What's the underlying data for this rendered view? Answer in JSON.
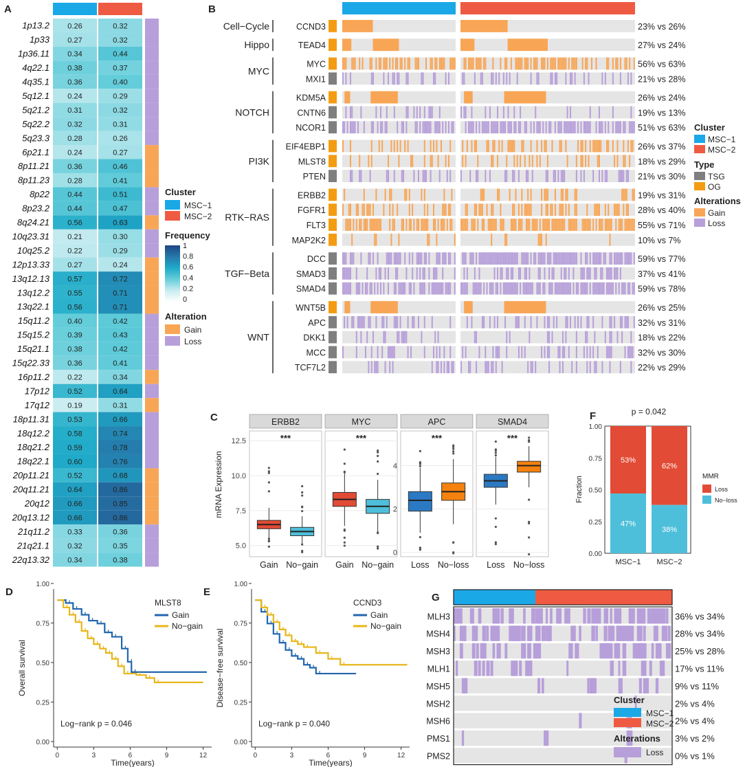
{
  "panels": {
    "A": "A",
    "B": "B",
    "C": "C",
    "D": "D",
    "E": "E",
    "F": "F",
    "G": "G"
  },
  "colors": {
    "msc1": "#1BA8E6",
    "msc2": "#EF5B42",
    "gain": "#F8A656",
    "loss": "#B79FDA",
    "tsg": "#7F7F7F",
    "og": "#F39C12",
    "bg": "#E5E5E5",
    "blue_box": "#2B79C2",
    "orange_box": "#F5820E",
    "red_box": "#E24B35",
    "lightblue_box": "#4EBFDA",
    "km_blue": "#2166AC",
    "km_yellow": "#E7B619"
  },
  "legendA": {
    "cluster_title": "Cluster",
    "msc1": "MSC−1",
    "msc2": "MSC−2",
    "freq_title": "Frequency",
    "freq_ticks": [
      "1",
      "0.8",
      "0.6",
      "0.4",
      "0.2",
      "0"
    ],
    "alt_title": "Alteration",
    "gain": "Gain",
    "loss": "Loss"
  },
  "heatmap": {
    "rows": [
      {
        "label": "1p13.2",
        "v1": "0.26",
        "v2": "0.32",
        "alt": "Loss"
      },
      {
        "label": "1p33",
        "v1": "0.27",
        "v2": "0.32",
        "alt": "Loss"
      },
      {
        "label": "1p36.11",
        "v1": "0.34",
        "v2": "0.44",
        "alt": "Loss"
      },
      {
        "label": "4q22.1",
        "v1": "0.38",
        "v2": "0.37",
        "alt": "Loss"
      },
      {
        "label": "4q35.1",
        "v1": "0.36",
        "v2": "0.40",
        "alt": "Loss"
      },
      {
        "label": "5q12.1",
        "v1": "0.24",
        "v2": "0.29",
        "alt": "Loss"
      },
      {
        "label": "5q21.2",
        "v1": "0.31",
        "v2": "0.32",
        "alt": "Loss"
      },
      {
        "label": "5q22.2",
        "v1": "0.32",
        "v2": "0.31",
        "alt": "Loss"
      },
      {
        "label": "5q23.3",
        "v1": "0.28",
        "v2": "0.26",
        "alt": "Loss"
      },
      {
        "label": "6p21.1",
        "v1": "0.24",
        "v2": "0.27",
        "alt": "Gain"
      },
      {
        "label": "8p11.21",
        "v1": "0.36",
        "v2": "0.46",
        "alt": "Gain"
      },
      {
        "label": "8p11.23",
        "v1": "0.28",
        "v2": "0.41",
        "alt": "Gain"
      },
      {
        "label": "8p22",
        "v1": "0.44",
        "v2": "0.51",
        "alt": "Loss"
      },
      {
        "label": "8p23.2",
        "v1": "0.44",
        "v2": "0.47",
        "alt": "Loss"
      },
      {
        "label": "8q24.21",
        "v1": "0.56",
        "v2": "0.63",
        "alt": "Gain"
      },
      {
        "label": "10q23.31",
        "v1": "0.21",
        "v2": "0.30",
        "alt": "Loss"
      },
      {
        "label": "10q25.2",
        "v1": "0.22",
        "v2": "0.29",
        "alt": "Loss"
      },
      {
        "label": "12p13.33",
        "v1": "0.27",
        "v2": "0.24",
        "alt": "Gain"
      },
      {
        "label": "13q12.13",
        "v1": "0.57",
        "v2": "0.72",
        "alt": "Gain"
      },
      {
        "label": "13q12.2",
        "v1": "0.55",
        "v2": "0.71",
        "alt": "Gain"
      },
      {
        "label": "13q22.1",
        "v1": "0.56",
        "v2": "0.71",
        "alt": "Gain"
      },
      {
        "label": "15q11.2",
        "v1": "0.40",
        "v2": "0.42",
        "alt": "Loss"
      },
      {
        "label": "15q15.2",
        "v1": "0.39",
        "v2": "0.43",
        "alt": "Loss"
      },
      {
        "label": "15q21.1",
        "v1": "0.38",
        "v2": "0.42",
        "alt": "Loss"
      },
      {
        "label": "15q22.33",
        "v1": "0.36",
        "v2": "0.41",
        "alt": "Loss"
      },
      {
        "label": "16p11.2",
        "v1": "0.22",
        "v2": "0.34",
        "alt": "Gain"
      },
      {
        "label": "17p12",
        "v1": "0.52",
        "v2": "0.64",
        "alt": "Loss"
      },
      {
        "label": "17q12",
        "v1": "0.19",
        "v2": "0.31",
        "alt": "Gain"
      },
      {
        "label": "18p11.31",
        "v1": "0.53",
        "v2": "0.66",
        "alt": "Loss"
      },
      {
        "label": "18q12.2",
        "v1": "0.58",
        "v2": "0.74",
        "alt": "Loss"
      },
      {
        "label": "18q21.2",
        "v1": "0.59",
        "v2": "0.78",
        "alt": "Loss"
      },
      {
        "label": "18q22.1",
        "v1": "0.60",
        "v2": "0.76",
        "alt": "Loss"
      },
      {
        "label": "20p11.21",
        "v1": "0.52",
        "v2": "0.68",
        "alt": "Gain"
      },
      {
        "label": "20q11.21",
        "v1": "0.64",
        "v2": "0.86",
        "alt": "Gain"
      },
      {
        "label": "20q12",
        "v1": "0.66",
        "v2": "0.85",
        "alt": "Gain"
      },
      {
        "label": "20q13.12",
        "v1": "0.66",
        "v2": "0.86",
        "alt": "Gain"
      },
      {
        "label": "21q11.2",
        "v1": "0.33",
        "v2": "0.36",
        "alt": "Loss"
      },
      {
        "label": "21q21.1",
        "v1": "0.32",
        "v2": "0.35",
        "alt": "Loss"
      },
      {
        "label": "22q13.32",
        "v1": "0.34",
        "v2": "0.38",
        "alt": "Loss"
      }
    ]
  },
  "oncoprint": {
    "groups": [
      {
        "name": "Cell−Cycle",
        "genes": [
          {
            "gene": "CCND3",
            "type": "OG",
            "pct": "23% vs 26%",
            "g1": 0.23,
            "g2": 0.26
          }
        ]
      },
      {
        "name": "Hippo",
        "genes": [
          {
            "gene": "TEAD4",
            "type": "OG",
            "pct": "27% vs 24%",
            "g1": 0.27,
            "g2": 0.24
          }
        ]
      },
      {
        "name": "MYC",
        "genes": [
          {
            "gene": "MYC",
            "type": "OG",
            "pct": "56% vs 63%",
            "g1": 0.56,
            "g2": 0.63
          },
          {
            "gene": "MXI1",
            "type": "TSG",
            "pct": "21% vs 28%",
            "g1": 0.21,
            "g2": 0.28
          }
        ]
      },
      {
        "name": "NOTCH",
        "genes": [
          {
            "gene": "KDM5A",
            "type": "OG",
            "pct": "26% vs 24%",
            "g1": 0.26,
            "g2": 0.24
          },
          {
            "gene": "CNTN6",
            "type": "TSG",
            "pct": "19% vs 13%",
            "g1": 0.19,
            "g2": 0.13
          },
          {
            "gene": "NCOR1",
            "type": "TSG",
            "pct": "51% vs 63%",
            "g1": 0.51,
            "g2": 0.63
          }
        ]
      },
      {
        "name": "PI3K",
        "genes": [
          {
            "gene": "EIF4EBP1",
            "type": "OG",
            "pct": "26% vs 37%",
            "g1": 0.26,
            "g2": 0.37
          },
          {
            "gene": "MLST8",
            "type": "OG",
            "pct": "18% vs 29%",
            "g1": 0.18,
            "g2": 0.29
          },
          {
            "gene": "PTEN",
            "type": "TSG",
            "pct": "21% vs 30%",
            "g1": 0.21,
            "g2": 0.3
          }
        ]
      },
      {
        "name": "RTK−RAS",
        "genes": [
          {
            "gene": "ERBB2",
            "type": "OG",
            "pct": "19% vs 31%",
            "g1": 0.19,
            "g2": 0.31
          },
          {
            "gene": "FGFR1",
            "type": "OG",
            "pct": "28% vs 40%",
            "g1": 0.28,
            "g2": 0.4
          },
          {
            "gene": "FLT3",
            "type": "OG",
            "pct": "55% vs 71%",
            "g1": 0.55,
            "g2": 0.71
          },
          {
            "gene": "MAP2K2",
            "type": "OG",
            "pct": "10% vs  7%",
            "g1": 0.1,
            "g2": 0.07
          }
        ]
      },
      {
        "name": "TGF−Beta",
        "genes": [
          {
            "gene": "DCC",
            "type": "TSG",
            "pct": "59% vs 77%",
            "g1": 0.59,
            "g2": 0.77
          },
          {
            "gene": "SMAD3",
            "type": "TSG",
            "pct": "37% vs 41%",
            "g1": 0.37,
            "g2": 0.41
          },
          {
            "gene": "SMAD4",
            "type": "TSG",
            "pct": "59% vs 78%",
            "g1": 0.59,
            "g2": 0.78
          }
        ]
      },
      {
        "name": "WNT",
        "genes": [
          {
            "gene": "WNT5B",
            "type": "OG",
            "pct": "26% vs 25%",
            "g1": 0.26,
            "g2": 0.25
          },
          {
            "gene": "APC",
            "type": "TSG",
            "pct": "32% vs 31%",
            "g1": 0.32,
            "g2": 0.31
          },
          {
            "gene": "DKK1",
            "type": "TSG",
            "pct": "18% vs 22%",
            "g1": 0.18,
            "g2": 0.22
          },
          {
            "gene": "MCC",
            "type": "TSG",
            "pct": "32% vs 30%",
            "g1": 0.32,
            "g2": 0.3
          },
          {
            "gene": "TCF7L2",
            "type": "TSG",
            "pct": "22% vs 29%",
            "g1": 0.22,
            "g2": 0.29
          }
        ]
      }
    ]
  },
  "legendB": {
    "cluster_title": "Cluster",
    "msc1": "MSC−1",
    "msc2": "MSC−2",
    "type_title": "Type",
    "tsg": "TSG",
    "og": "OG",
    "alt_title": "Alterations",
    "gain": "Gain",
    "loss": "Loss"
  },
  "chart_data": [
    {
      "panel": "C",
      "type": "box",
      "ylabel": "mRNA Expression",
      "facets": [
        {
          "gene": "ERBB2",
          "groups": [
            "Gain",
            "No−gain"
          ],
          "sig": "***",
          "ylim": [
            4.2,
            13.2
          ],
          "yticks": [
            "5.0",
            "7.5",
            "10.0",
            "12.5"
          ],
          "ytickvals": [
            5,
            7.5,
            10,
            12.5
          ],
          "boxes": [
            {
              "q1": 6.2,
              "med": 6.5,
              "q3": 6.8,
              "lo": 5.4,
              "hi": 7.7,
              "fill": "red"
            },
            {
              "q1": 5.7,
              "med": 6.0,
              "q3": 6.3,
              "lo": 5.0,
              "hi": 7.1,
              "fill": "lightblue"
            }
          ]
        },
        {
          "gene": "MYC",
          "groups": [
            "Gain",
            "No−gain"
          ],
          "sig": "***",
          "ylim": [
            4.2,
            13.2
          ],
          "boxes": [
            {
              "q1": 7.8,
              "med": 8.3,
              "q3": 8.8,
              "lo": 6.4,
              "hi": 10.2,
              "fill": "red"
            },
            {
              "q1": 7.3,
              "med": 7.8,
              "q3": 8.3,
              "lo": 5.9,
              "hi": 9.7,
              "fill": "lightblue"
            }
          ]
        },
        {
          "gene": "APC",
          "groups": [
            "Loss",
            "No−loss"
          ],
          "sig": "***",
          "ylim": [
            -0.2,
            5.6
          ],
          "yticks": [
            "0",
            "2",
            "4"
          ],
          "ytickvals": [
            0,
            2,
            4
          ],
          "boxes": [
            {
              "q1": 1.9,
              "med": 2.4,
              "q3": 2.8,
              "lo": 0.9,
              "hi": 3.9,
              "fill": "blue"
            },
            {
              "q1": 2.4,
              "med": 2.8,
              "q3": 3.2,
              "lo": 1.3,
              "hi": 4.3,
              "fill": "orange"
            }
          ]
        },
        {
          "gene": "SMAD4",
          "groups": [
            "Loss",
            "No−loss"
          ],
          "sig": "***",
          "ylim": [
            -0.2,
            5.6
          ],
          "boxes": [
            {
              "q1": 3.0,
              "med": 3.3,
              "q3": 3.6,
              "lo": 2.2,
              "hi": 4.4,
              "fill": "blue"
            },
            {
              "q1": 3.7,
              "med": 4.0,
              "q3": 4.2,
              "lo": 3.0,
              "hi": 4.9,
              "fill": "orange"
            }
          ]
        }
      ]
    },
    {
      "panel": "F",
      "type": "bar",
      "title": "p = 0.042",
      "categories": [
        "MSC−1",
        "MSC−2"
      ],
      "series": [
        {
          "name": "Loss",
          "values": [
            0.53,
            0.62
          ],
          "labels": [
            "53%",
            "62%"
          ]
        },
        {
          "name": "No−loss",
          "values": [
            0.47,
            0.38
          ],
          "labels": [
            "47%",
            "38%"
          ]
        }
      ],
      "ylabel": "Fraction",
      "yticks": [
        "0.00",
        "0.25",
        "0.50",
        "0.75",
        "1.00"
      ],
      "legend_title": "MMR"
    },
    {
      "panel": "D",
      "type": "line",
      "ylabel": "Overall survival",
      "xlabel": "Time(years)",
      "xticks": [
        "0",
        "3",
        "6",
        "9",
        "12"
      ],
      "yticks": [
        "0.00",
        "0.25",
        "0.50",
        "0.75",
        "1.00"
      ],
      "legend_title": "MLST8",
      "annotation": "Log−rank p = 0.046",
      "series": [
        {
          "name": "Gain",
          "color": "blue",
          "points": [
            [
              0,
              1
            ],
            [
              0.7,
              0.98
            ],
            [
              1.3,
              0.94
            ],
            [
              2,
              0.9
            ],
            [
              2.6,
              0.86
            ],
            [
              3.3,
              0.84
            ],
            [
              3.9,
              0.78
            ],
            [
              4.5,
              0.75
            ],
            [
              5.3,
              0.67
            ],
            [
              5.8,
              0.58
            ],
            [
              6.1,
              0.51
            ],
            [
              12.3,
              0.51
            ]
          ]
        },
        {
          "name": "No−gain",
          "color": "yellow",
          "points": [
            [
              0,
              1
            ],
            [
              0.5,
              0.95
            ],
            [
              1,
              0.9
            ],
            [
              1.5,
              0.85
            ],
            [
              2,
              0.79
            ],
            [
              2.5,
              0.74
            ],
            [
              3,
              0.7
            ],
            [
              3.5,
              0.67
            ],
            [
              4,
              0.64
            ],
            [
              4.5,
              0.6
            ],
            [
              5,
              0.55
            ],
            [
              5.5,
              0.5
            ],
            [
              6.5,
              0.49
            ],
            [
              7.3,
              0.47
            ],
            [
              8,
              0.44
            ],
            [
              12,
              0.44
            ]
          ]
        }
      ]
    },
    {
      "panel": "E",
      "type": "line",
      "ylabel": "Disease−free survival",
      "xlabel": "Time(years)",
      "xticks": [
        "0",
        "3",
        "6",
        "9",
        "12"
      ],
      "yticks": [
        "0.00",
        "0.25",
        "0.50",
        "0.75",
        "1.00"
      ],
      "legend_title": "CCND3",
      "annotation": "Log−rank p = 0.040",
      "series": [
        {
          "name": "Gain",
          "color": "blue",
          "points": [
            [
              0,
              1
            ],
            [
              0.5,
              0.92
            ],
            [
              1,
              0.84
            ],
            [
              1.5,
              0.77
            ],
            [
              2,
              0.71
            ],
            [
              2.5,
              0.66
            ],
            [
              3,
              0.62
            ],
            [
              3.5,
              0.6
            ],
            [
              4,
              0.56
            ],
            [
              4.5,
              0.54
            ],
            [
              5,
              0.5
            ],
            [
              8.3,
              0.5
            ]
          ]
        },
        {
          "name": "No−gain",
          "color": "yellow",
          "points": [
            [
              0,
              1
            ],
            [
              0.5,
              0.95
            ],
            [
              1,
              0.9
            ],
            [
              1.5,
              0.85
            ],
            [
              2,
              0.8
            ],
            [
              2.5,
              0.76
            ],
            [
              3,
              0.72
            ],
            [
              3.5,
              0.7
            ],
            [
              4,
              0.68
            ],
            [
              5,
              0.64
            ],
            [
              6,
              0.6
            ],
            [
              7,
              0.56
            ],
            [
              12.5,
              0.56
            ]
          ]
        }
      ]
    }
  ],
  "mmr": {
    "genes": [
      {
        "gene": "MLH3",
        "pct": "36% vs 34%",
        "g1": 0.36,
        "g2": 0.34
      },
      {
        "gene": "MSH4",
        "pct": "28% vs 34%",
        "g1": 0.28,
        "g2": 0.34
      },
      {
        "gene": "MSH3",
        "pct": "25% vs 28%",
        "g1": 0.25,
        "g2": 0.28
      },
      {
        "gene": "MLH1",
        "pct": "17% vs 11%",
        "g1": 0.17,
        "g2": 0.11
      },
      {
        "gene": "MSH5",
        "pct": "9%  vs 11%",
        "g1": 0.09,
        "g2": 0.11
      },
      {
        "gene": "MSH2",
        "pct": "2%  vs  4%",
        "g1": 0.02,
        "g2": 0.04
      },
      {
        "gene": "MSH6",
        "pct": "2%  vs  4%",
        "g1": 0.02,
        "g2": 0.04
      },
      {
        "gene": "PMS1",
        "pct": "3%  vs  2%",
        "g1": 0.03,
        "g2": 0.02
      },
      {
        "gene": "PMS2",
        "pct": "0%  vs  1%",
        "g1": 0.0,
        "g2": 0.01
      }
    ]
  },
  "legendG": {
    "cluster_title": "Cluster",
    "msc1": "MSC−1",
    "msc2": "MSC−2",
    "alt_title": "Alterations",
    "loss": "Loss"
  }
}
